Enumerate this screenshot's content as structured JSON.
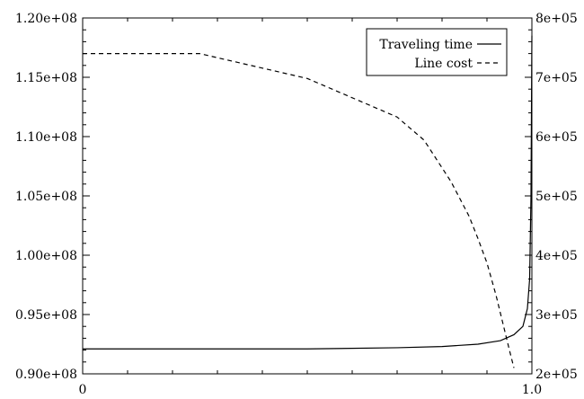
{
  "chart_data": {
    "type": "line",
    "title": "",
    "xlabel": "",
    "ylabel": "",
    "grid": false,
    "legend_position": "top-right",
    "x_ticks": [
      {
        "value": 0,
        "label": "0"
      },
      {
        "value": 1,
        "label": "1.0"
      }
    ],
    "xlim": [
      0,
      1
    ],
    "y_left": {
      "lim": [
        90000000,
        120000000
      ],
      "ticks": [
        {
          "value": 90000000,
          "label": "0.90e+08"
        },
        {
          "value": 95000000,
          "label": "0.95e+08"
        },
        {
          "value": 100000000,
          "label": "1.00e+08"
        },
        {
          "value": 105000000,
          "label": "1.05e+08"
        },
        {
          "value": 110000000,
          "label": "1.10e+08"
        },
        {
          "value": 115000000,
          "label": "1.15e+08"
        },
        {
          "value": 120000000,
          "label": "1.20e+08"
        }
      ]
    },
    "y_right": {
      "lim": [
        200000,
        800000
      ],
      "ticks": [
        {
          "value": 200000,
          "label": "2e+05"
        },
        {
          "value": 300000,
          "label": "3e+05"
        },
        {
          "value": 400000,
          "label": "4e+05"
        },
        {
          "value": 500000,
          "label": "5e+05"
        },
        {
          "value": 600000,
          "label": "6e+05"
        },
        {
          "value": 700000,
          "label": "7e+05"
        },
        {
          "value": 800000,
          "label": "8e+05"
        }
      ]
    },
    "series": [
      {
        "name": "Traveling time",
        "axis": "left",
        "style": "solid",
        "color": "#000000",
        "points": [
          [
            0.0,
            92100000
          ],
          [
            0.5,
            92100000
          ],
          [
            0.7,
            92200000
          ],
          [
            0.8,
            92300000
          ],
          [
            0.88,
            92500000
          ],
          [
            0.93,
            92800000
          ],
          [
            0.96,
            93300000
          ],
          [
            0.98,
            94000000
          ],
          [
            0.99,
            95500000
          ],
          [
            0.995,
            98000000
          ],
          [
            0.998,
            105000000
          ],
          [
            1.0,
            118500000
          ]
        ]
      },
      {
        "name": "Line cost",
        "axis": "right",
        "style": "dashed",
        "color": "#000000",
        "points": [
          [
            0.0,
            740000
          ],
          [
            0.26,
            740000
          ],
          [
            0.5,
            698000
          ],
          [
            0.7,
            633000
          ],
          [
            0.76,
            594000
          ],
          [
            0.82,
            524000
          ],
          [
            0.86,
            466000
          ],
          [
            0.88,
            428000
          ],
          [
            0.9,
            387000
          ],
          [
            0.92,
            333000
          ],
          [
            0.95,
            240000
          ],
          [
            0.96,
            210000
          ]
        ]
      }
    ]
  }
}
